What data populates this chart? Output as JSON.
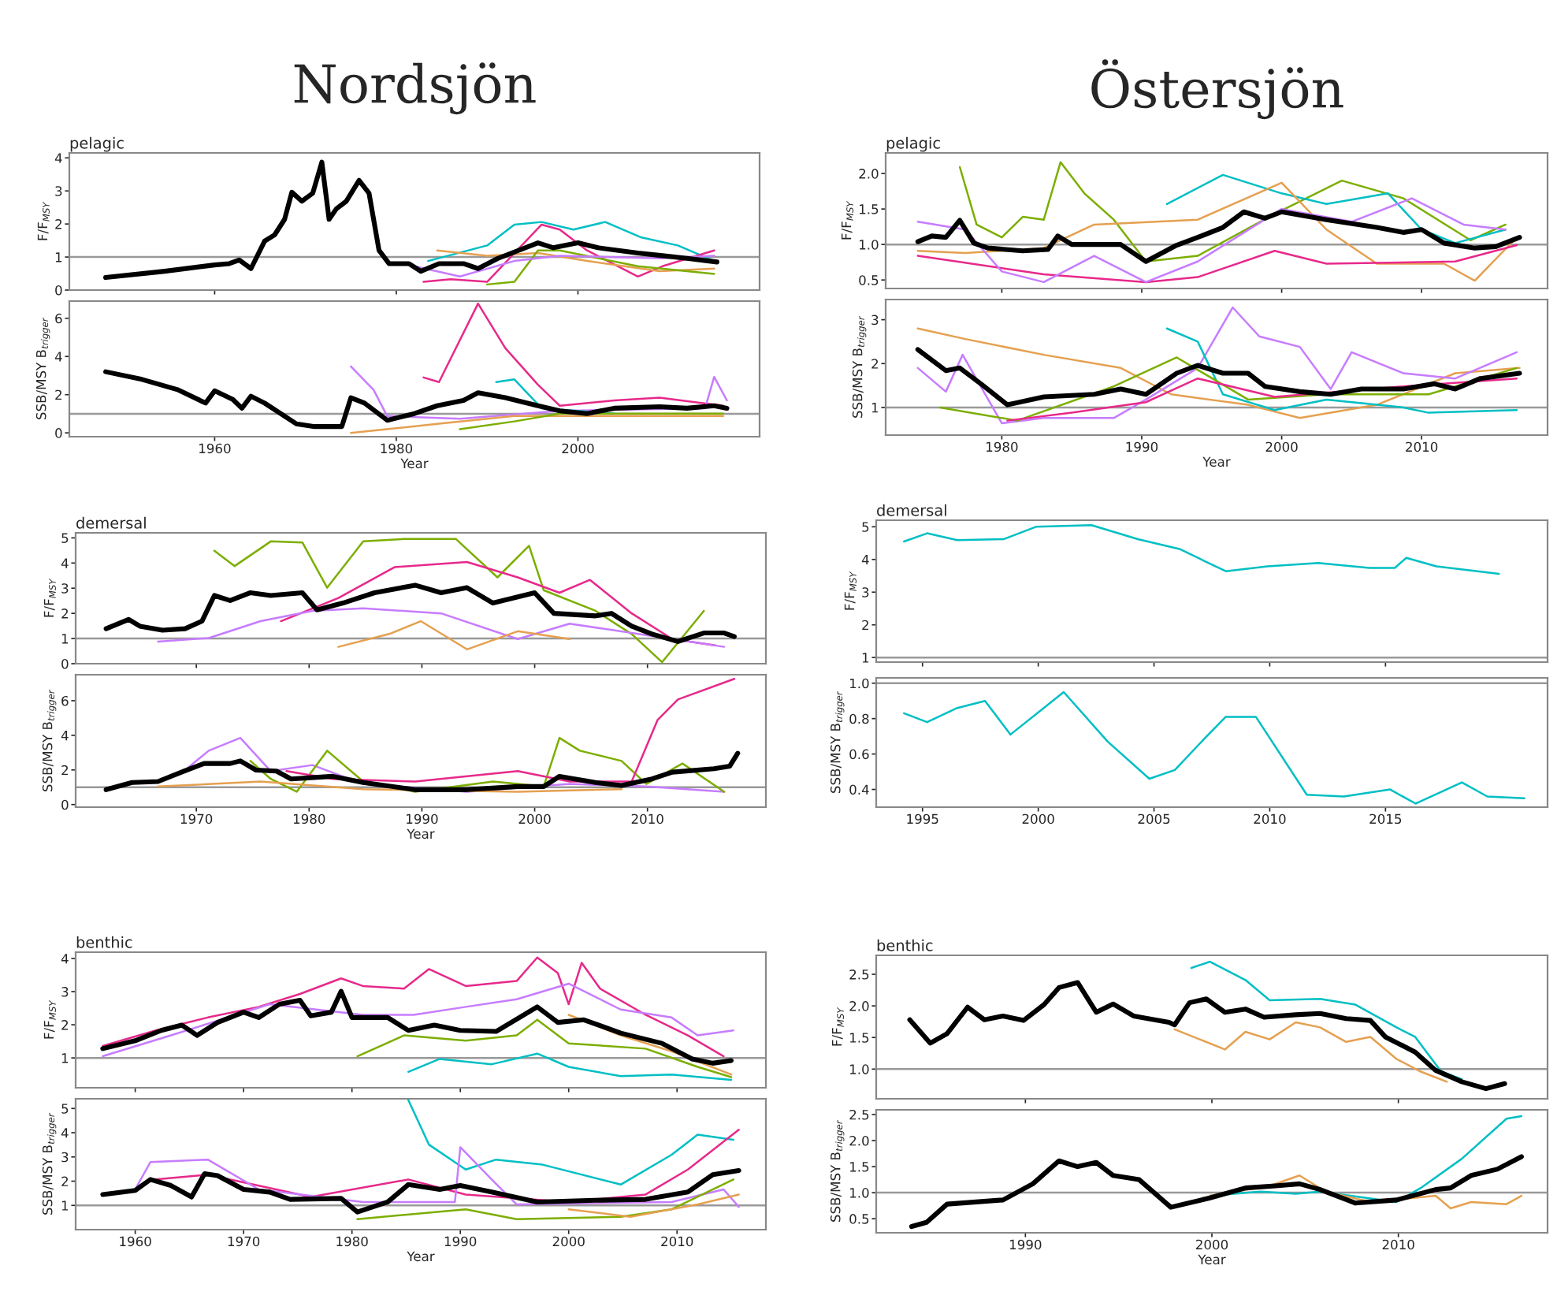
{
  "chart_data": [
    {
      "type": "line",
      "title": "pelagic",
      "ylabel": "F/F$_{MSY}$",
      "annotations": [
        "Nordsjön"
      ],
      "xlim": [
        1944,
        2020
      ],
      "xticks": [
        1960,
        1980,
        2000
      ],
      "ylim": [
        0,
        4.15
      ],
      "yticks": [
        0,
        1,
        2,
        3,
        4
      ],
      "tick_labels": "y",
      "ref_lines": [
        {
          "axis": "y",
          "value": 1,
          "color": "#999999"
        }
      ],
      "series": [
        {
          "color": "#000000",
          "x": [
            1948,
            1954.5,
            1960,
            1961.6,
            1962.7,
            1964,
            1965.5,
            1966.6,
            1967.7,
            1968.5,
            1969.6,
            1970.8,
            1971.8,
            1972.6,
            1973.4,
            1974.5,
            1975.9,
            1977,
            1978.1,
            1979.2,
            1981.4,
            1982.7,
            1984.7,
            1987.4,
            1989,
            1991.2,
            1995.6,
            1997.3,
            2000,
            2002.2,
            2006.6,
            2009.3,
            2012,
            2015.3
          ],
          "values": [
            0.38,
            0.57,
            0.76,
            0.8,
            0.91,
            0.65,
            1.48,
            1.67,
            2.14,
            2.96,
            2.69,
            2.93,
            3.87,
            2.14,
            2.46,
            2.69,
            3.32,
            2.93,
            1.2,
            0.8,
            0.8,
            0.57,
            0.8,
            0.8,
            0.65,
            0.96,
            1.43,
            1.28,
            1.43,
            1.28,
            1.12,
            1.04,
            0.96,
            0.85
          ]
        },
        {
          "color": "#00bfc4",
          "x": [
            1983.5,
            1990,
            1993,
            1996,
            1999.5,
            2003,
            2007,
            2011,
            2015
          ],
          "values": [
            0.88,
            1.35,
            1.98,
            2.06,
            1.83,
            2.06,
            1.59,
            1.35,
            0.88
          ]
        },
        {
          "color": "#e7298a",
          "x": [
            1983,
            1986,
            1990,
            1996,
            1998,
            2001,
            2006.6,
            2009.3,
            2015
          ],
          "values": [
            0.25,
            0.33,
            0.25,
            1.98,
            1.83,
            1.2,
            0.41,
            0.72,
            1.2
          ]
        },
        {
          "color": "#e5a050",
          "x": [
            1984.5,
            1990,
            1995.6,
            2001,
            2009,
            2015
          ],
          "values": [
            1.2,
            1.04,
            1.12,
            0.88,
            0.57,
            0.65
          ]
        },
        {
          "color": "#7cae00",
          "x": [
            1990,
            1993,
            1995.6,
            1998,
            2006.6,
            2015
          ],
          "values": [
            0.17,
            0.25,
            1.2,
            1.2,
            0.72,
            0.49
          ]
        },
        {
          "color": "#c77cff",
          "x": [
            1982,
            1987,
            1993,
            1998,
            2009,
            2015
          ],
          "values": [
            0.72,
            0.41,
            0.88,
            1.04,
            0.96,
            1.04
          ]
        }
      ]
    },
    {
      "type": "line",
      "ylabel": "SSB/MSY B$_{trigger}$",
      "xlabel": "Year",
      "xlim": [
        1944,
        2020
      ],
      "xticks": [
        1960,
        1980,
        2000
      ],
      "ylim": [
        -0.2,
        6.9
      ],
      "yticks": [
        0,
        2,
        4,
        6
      ],
      "ref_lines": [
        {
          "axis": "y",
          "value": 1,
          "color": "#999999"
        }
      ],
      "series": [
        {
          "color": "#000000",
          "x": [
            1948,
            1952,
            1956,
            1959,
            1960,
            1962,
            1963,
            1964,
            1965.5,
            1969,
            1971,
            1974,
            1975,
            1976.5,
            1979,
            1982,
            1984.5,
            1987.4,
            1989,
            1992,
            1995.6,
            1998,
            2001,
            2004,
            2009,
            2012,
            2015,
            2016.4
          ],
          "values": [
            3.2,
            2.8,
            2.25,
            1.56,
            2.2,
            1.75,
            1.29,
            1.92,
            1.56,
            0.47,
            0.33,
            0.33,
            1.84,
            1.56,
            0.66,
            1.01,
            1.42,
            1.7,
            2.1,
            1.84,
            1.42,
            1.15,
            1.01,
            1.29,
            1.37,
            1.29,
            1.42,
            1.29
          ]
        },
        {
          "color": "#e7298a",
          "x": [
            1983,
            1984.7,
            1989,
            1992,
            1995.6,
            1998,
            2004,
            2009,
            2016
          ],
          "values": [
            2.9,
            2.66,
            6.77,
            4.44,
            2.52,
            1.42,
            1.7,
            1.84,
            1.42
          ]
        },
        {
          "color": "#c77cff",
          "x": [
            1975,
            1977.5,
            1979,
            1987,
            1998,
            2014,
            2015,
            2016.4
          ],
          "values": [
            3.48,
            2.25,
            0.88,
            0.74,
            1.15,
            1.29,
            2.93,
            1.7
          ]
        },
        {
          "color": "#00bfc4",
          "x": [
            1991,
            1993,
            1996,
            2004
          ],
          "values": [
            2.66,
            2.8,
            1.29,
            1.01
          ]
        },
        {
          "color": "#e5a050",
          "x": [
            1975,
            1984.5,
            1993,
            2004,
            2016
          ],
          "values": [
            0.0,
            0.47,
            0.88,
            0.88,
            0.88
          ]
        },
        {
          "color": "#7cae00",
          "x": [
            1987,
            1993,
            1998,
            2016
          ],
          "values": [
            0.19,
            0.6,
            1.01,
            1.01
          ]
        }
      ]
    },
    {
      "type": "line",
      "title": "pelagic",
      "ylabel": "F/F$_{MSY}$",
      "annotations": [
        "Östersjön"
      ],
      "xlim": [
        1971.7,
        2019
      ],
      "xticks": [
        1980,
        1990,
        2000,
        2010
      ],
      "ylim": [
        0.38,
        2.29
      ],
      "yticks": [
        {
          "value": 0.5,
          "label": "0.5"
        },
        {
          "value": 1,
          "label": "1.0"
        },
        {
          "value": 1.5,
          "label": "1.5"
        },
        {
          "value": 2,
          "label": "2.0"
        }
      ],
      "tick_labels": "y",
      "ref_lines": [
        {
          "axis": "y",
          "value": 1,
          "color": "#999999"
        }
      ],
      "series": [
        {
          "color": "#000000",
          "x": [
            1974,
            1975,
            1976,
            1977,
            1978,
            1979,
            1981.5,
            1983.3,
            1984,
            1985,
            1988.5,
            1990.3,
            1992.5,
            1994,
            1995.8,
            1997.3,
            1998.8,
            2000,
            2003.2,
            2006.8,
            2008.7,
            2010,
            2011.6,
            2013.8,
            2015.3,
            2017
          ],
          "values": [
            1.04,
            1.12,
            1.1,
            1.34,
            1.02,
            0.95,
            0.91,
            0.93,
            1.12,
            1.0,
            1.0,
            0.76,
            0.99,
            1.1,
            1.24,
            1.46,
            1.37,
            1.46,
            1.35,
            1.24,
            1.17,
            1.21,
            1.02,
            0.95,
            0.97,
            1.1
          ]
        },
        {
          "color": "#7cae00",
          "x": [
            1977,
            1978.2,
            1980,
            1981.5,
            1983,
            1984.2,
            1985.9,
            1988,
            1990.3,
            1994,
            1999.5,
            2004.3,
            2008.7,
            2013.5,
            2016
          ],
          "values": [
            2.09,
            1.28,
            1.1,
            1.39,
            1.35,
            2.16,
            1.72,
            1.35,
            0.76,
            0.84,
            1.43,
            1.9,
            1.65,
            1.06,
            1.28
          ]
        },
        {
          "color": "#00bfc4",
          "x": [
            1991.8,
            1995.8,
            2000,
            2003.2,
            2007.6,
            2010,
            2012.4,
            2016
          ],
          "values": [
            1.57,
            1.98,
            1.72,
            1.57,
            1.72,
            1.21,
            1.02,
            1.21
          ]
        },
        {
          "color": "#e5a050",
          "x": [
            1974,
            1977.4,
            1983,
            1986.6,
            1994,
            2000,
            2003.2,
            2006.8,
            2011.6,
            2013.8,
            2016.8
          ],
          "values": [
            0.91,
            0.88,
            0.95,
            1.28,
            1.35,
            1.87,
            1.21,
            0.73,
            0.73,
            0.49,
            1.1
          ]
        },
        {
          "color": "#e7298a",
          "x": [
            1974,
            1983,
            1990.3,
            1994,
            1999.5,
            2003.2,
            2012.4,
            2016.8
          ],
          "values": [
            0.84,
            0.58,
            0.47,
            0.54,
            0.91,
            0.73,
            0.76,
            0.99
          ]
        },
        {
          "color": "#c77cff",
          "x": [
            1974,
            1977.4,
            1980,
            1983,
            1986.6,
            1990.3,
            1994,
            2000,
            2005,
            2009.3,
            2013,
            2016
          ],
          "values": [
            1.32,
            1.21,
            0.62,
            0.47,
            0.84,
            0.47,
            0.76,
            1.5,
            1.32,
            1.65,
            1.28,
            1.21
          ]
        }
      ]
    },
    {
      "type": "line",
      "ylabel": "SSB/MSY B$_{trigger}$",
      "xlabel": "Year",
      "xlim": [
        1971.7,
        2019
      ],
      "xticks": [
        1980,
        1990,
        2000,
        2010
      ],
      "ylim": [
        0.37,
        3.46
      ],
      "yticks": [
        1,
        2,
        3
      ],
      "ref_lines": [
        {
          "axis": "y",
          "value": 1,
          "color": "#999999"
        }
      ],
      "series": [
        {
          "color": "#000000",
          "x": [
            1974,
            1976,
            1977,
            1978.5,
            1980.4,
            1983,
            1986.6,
            1988.5,
            1990.3,
            1992.5,
            1994,
            1995.8,
            1997.6,
            1998.8,
            2001.3,
            2003.5,
            2005.7,
            2008.7,
            2010.9,
            2012.4,
            2014.2,
            2017
          ],
          "values": [
            2.32,
            1.84,
            1.9,
            1.54,
            1.06,
            1.24,
            1.3,
            1.42,
            1.3,
            1.78,
            1.96,
            1.78,
            1.78,
            1.48,
            1.36,
            1.3,
            1.42,
            1.42,
            1.54,
            1.42,
            1.66,
            1.78
          ]
        },
        {
          "color": "#e5a050",
          "x": [
            1974,
            1977.4,
            1983,
            1988.5,
            1992.1,
            1997.6,
            2001.3,
            2006.8,
            2012.4,
            2017
          ],
          "values": [
            2.8,
            2.56,
            2.2,
            1.9,
            1.3,
            1.06,
            0.76,
            1.06,
            1.78,
            1.9
          ]
        },
        {
          "color": "#c77cff",
          "x": [
            1974,
            1976,
            1977.2,
            1980,
            1983,
            1988,
            1990.3,
            1994,
            1996.5,
            1998.4,
            2001.3,
            2003.5,
            2005,
            2008.7,
            2012.4,
            2016.8
          ],
          "values": [
            1.9,
            1.36,
            2.2,
            0.64,
            0.76,
            0.76,
            1.18,
            1.9,
            3.28,
            2.62,
            2.38,
            1.42,
            2.26,
            1.78,
            1.66,
            2.26
          ]
        },
        {
          "color": "#00bfc4",
          "x": [
            1991.8,
            1994,
            1995.8,
            1999.5,
            2003.2,
            2008.7,
            2010.5,
            2016.8
          ],
          "values": [
            2.8,
            2.5,
            1.3,
            0.94,
            1.18,
            1.0,
            0.88,
            0.94
          ]
        },
        {
          "color": "#7cae00",
          "x": [
            1975.6,
            1981.1,
            1988,
            1992.5,
            1997.6,
            2003.2,
            2010.5,
            2016.8
          ],
          "values": [
            1.0,
            0.7,
            1.48,
            2.14,
            1.18,
            1.3,
            1.3,
            1.9
          ]
        },
        {
          "color": "#e7298a",
          "x": [
            1980.4,
            1985,
            1990.3,
            1994,
            1999.5,
            2008.7,
            2016.8
          ],
          "values": [
            0.7,
            0.88,
            1.12,
            1.66,
            1.24,
            1.48,
            1.66
          ]
        }
      ]
    },
    {
      "type": "line",
      "title": "demersal",
      "ylabel": "F/F$_{MSY}$",
      "xlim": [
        1959.3,
        2020.5
      ],
      "xticks": [
        1970,
        1980,
        1990,
        2000,
        2010
      ],
      "ylim": [
        0,
        5.2
      ],
      "yticks": [
        0,
        1,
        2,
        3,
        4,
        5
      ],
      "tick_labels": "y",
      "ref_lines": [
        {
          "axis": "y",
          "value": 1,
          "color": "#999999"
        }
      ],
      "series": [
        {
          "color": "#000000",
          "x": [
            1962,
            1964,
            1965,
            1967,
            1969,
            1970.5,
            1971.6,
            1973,
            1974.8,
            1976.6,
            1979.4,
            1980.7,
            1983,
            1985.8,
            1989.4,
            1991.7,
            1994,
            1996.3,
            2000,
            2001.7,
            2005.4,
            2006.8,
            2008.6,
            2010.4,
            2012.7,
            2015,
            2016.8,
            2017.7
          ],
          "values": [
            1.39,
            1.76,
            1.49,
            1.33,
            1.39,
            1.69,
            2.71,
            2.51,
            2.82,
            2.71,
            2.82,
            2.14,
            2.41,
            2.82,
            3.12,
            2.82,
            3.02,
            2.41,
            2.82,
            2.0,
            1.9,
            2.0,
            1.49,
            1.18,
            0.88,
            1.22,
            1.22,
            1.08
          ]
        },
        {
          "color": "#7cae00",
          "x": [
            1971.6,
            1973.4,
            1976.6,
            1979.4,
            1981.6,
            1984.8,
            1988.5,
            1993,
            1996.7,
            1999.5,
            2000.8,
            2005.4,
            2008.6,
            2011.3,
            2015
          ],
          "values": [
            4.49,
            3.88,
            4.86,
            4.82,
            3.02,
            4.86,
            4.96,
            4.96,
            3.43,
            4.69,
            2.92,
            2.1,
            1.18,
            0.06,
            2.1
          ]
        },
        {
          "color": "#e7298a",
          "x": [
            1977.5,
            1982.6,
            1987.6,
            1994,
            1998.5,
            2002.2,
            2004.9,
            2008.6,
            2012.2,
            2016
          ],
          "values": [
            1.69,
            2.61,
            3.84,
            4.04,
            3.43,
            2.82,
            3.33,
            2.0,
            0.98,
            0.73
          ]
        },
        {
          "color": "#c77cff",
          "x": [
            1966.6,
            1971.1,
            1975.7,
            1980.3,
            1984.8,
            1991.7,
            1998.5,
            2003.1,
            2012.2,
            2016.8
          ],
          "values": [
            0.88,
            1.02,
            1.69,
            2.1,
            2.2,
            2.0,
            0.98,
            1.59,
            0.98,
            0.67
          ]
        },
        {
          "color": "#e5a050",
          "x": [
            1982.6,
            1987.1,
            1989.9,
            1994,
            1998.5,
            2003.1
          ],
          "values": [
            0.67,
            1.18,
            1.69,
            0.57,
            1.29,
            0.98
          ]
        }
      ]
    },
    {
      "type": "line",
      "ylabel": "SSB/MSY B$_{trigger}$",
      "xlabel": "Year",
      "xlim": [
        1959.3,
        2020.5
      ],
      "xticks": [
        1970,
        1980,
        1990,
        2000,
        2010
      ],
      "ylim": [
        -0.15,
        7.5
      ],
      "yticks": [
        0,
        2,
        4,
        6
      ],
      "ref_lines": [
        {
          "axis": "y",
          "value": 1,
          "color": "#999999"
        }
      ],
      "series": [
        {
          "color": "#000000",
          "x": [
            1962,
            1964.3,
            1966.6,
            1968.9,
            1970.7,
            1973,
            1973.9,
            1975.3,
            1977.1,
            1978.4,
            1982.1,
            1984.8,
            1989.4,
            1994,
            1998.5,
            2000.8,
            2002.2,
            2005.4,
            2007.7,
            2010.4,
            2012.2,
            2015.9,
            2017.3,
            2018
          ],
          "values": [
            0.86,
            1.27,
            1.33,
            1.93,
            2.37,
            2.37,
            2.52,
            1.99,
            1.93,
            1.48,
            1.63,
            1.27,
            0.86,
            0.86,
            1.04,
            1.04,
            1.63,
            1.27,
            1.1,
            1.48,
            1.87,
            2.07,
            2.22,
            2.96
          ]
        },
        {
          "color": "#c77cff",
          "x": [
            1968.9,
            1971.1,
            1973.9,
            1976.6,
            1980.3,
            1984.8,
            1994,
            2003.1,
            2009.9,
            2016.8
          ],
          "values": [
            1.93,
            3.11,
            3.85,
            1.93,
            2.28,
            1.19,
            0.74,
            1.19,
            1.04,
            0.74
          ]
        },
        {
          "color": "#7cae00",
          "x": [
            1974.8,
            1976.6,
            1978.9,
            1981.6,
            1984.8,
            1989.4,
            1996.3,
            2000.8,
            2002.2,
            2004,
            2007.7,
            2009.9,
            2013.1,
            2016.8
          ],
          "values": [
            2.52,
            1.48,
            0.74,
            3.11,
            1.33,
            0.74,
            1.33,
            1.04,
            3.85,
            3.11,
            2.52,
            1.19,
            2.37,
            0.74
          ]
        },
        {
          "color": "#e7298a",
          "x": [
            1978,
            1982.1,
            1989.4,
            1998.5,
            2003.1,
            2008.6,
            2010.9,
            2012.7,
            2017.7
          ],
          "values": [
            1.93,
            1.48,
            1.33,
            1.93,
            1.33,
            1.33,
            4.89,
            6.07,
            7.26
          ]
        },
        {
          "color": "#e5a050",
          "x": [
            1966.6,
            1975.7,
            1984.8,
            1998.5,
            2007.7
          ],
          "values": [
            1.04,
            1.33,
            0.89,
            0.74,
            0.89
          ]
        }
      ]
    },
    {
      "type": "line",
      "title": "demersal",
      "ylabel": "F/F$_{MSY}$",
      "xlim": [
        1993,
        2022
      ],
      "xticks": [
        1995,
        2000,
        2005,
        2010,
        2015
      ],
      "ylim": [
        0.86,
        5.2
      ],
      "yticks": [
        1,
        2,
        3,
        4,
        5
      ],
      "tick_labels": "y",
      "ref_lines": [
        {
          "axis": "y",
          "value": 1,
          "color": "#999999"
        }
      ],
      "series": [
        {
          "color": "#00bfc4",
          "x": [
            1994.2,
            1995.2,
            1996.5,
            1998.5,
            1999.9,
            2002.3,
            2004.3,
            2006.1,
            2008.1,
            2009.9,
            2012.1,
            2014.3,
            2015.4,
            2015.9,
            2017.2,
            2019.9
          ],
          "values": [
            4.55,
            4.8,
            4.59,
            4.62,
            5.0,
            5.05,
            4.62,
            4.32,
            3.64,
            3.79,
            3.89,
            3.74,
            3.74,
            4.05,
            3.79,
            3.56
          ]
        }
      ]
    },
    {
      "type": "line",
      "ylabel": "SSB/MSY B$_{trigger}$",
      "xlim": [
        1993,
        2022
      ],
      "xticks": [
        1995,
        2000,
        2005,
        2010,
        2015
      ],
      "ylim": [
        0.3,
        1.03
      ],
      "yticks": [
        {
          "value": 0.4,
          "label": "0.4"
        },
        {
          "value": 0.6,
          "label": "0.6"
        },
        {
          "value": 0.8,
          "label": "0.8"
        },
        {
          "value": 1,
          "label": "1.0"
        }
      ],
      "ref_lines": [
        {
          "axis": "y",
          "value": 1,
          "color": "#999999"
        }
      ],
      "series": [
        {
          "color": "#00bfc4",
          "x": [
            1994.2,
            1995.2,
            1996.5,
            1997.7,
            1998.8,
            2001.1,
            2003,
            2004.8,
            2005.9,
            2007.2,
            2008.1,
            2009.4,
            2011.6,
            2013.2,
            2015.2,
            2016.3,
            2018.3,
            2019.4,
            2021
          ],
          "values": [
            0.83,
            0.78,
            0.86,
            0.9,
            0.71,
            0.95,
            0.67,
            0.46,
            0.51,
            0.69,
            0.81,
            0.81,
            0.37,
            0.36,
            0.4,
            0.32,
            0.44,
            0.36,
            0.35
          ]
        }
      ]
    },
    {
      "type": "line",
      "title": "benthic",
      "ylabel": "F/F$_{MSY}$",
      "xlim": [
        1954.5,
        2018.2
      ],
      "xticks": [
        1960,
        1970,
        1980,
        1990,
        2000,
        2010
      ],
      "ylim": [
        0.1,
        4.19
      ],
      "yticks": [
        1,
        2,
        3,
        4
      ],
      "tick_labels": "y",
      "ref_lines": [
        {
          "axis": "y",
          "value": 1,
          "color": "#999999"
        }
      ],
      "series": [
        {
          "color": "#000000",
          "x": [
            1957,
            1960,
            1962.4,
            1964.3,
            1965.7,
            1967.6,
            1970,
            1971.4,
            1973.3,
            1975.2,
            1976.2,
            1978.1,
            1979,
            1980,
            1983.3,
            1985.2,
            1987.6,
            1990,
            1993.3,
            1997.1,
            1999,
            2001.4,
            2004.8,
            2008.6,
            2011.4,
            2013.3,
            2015
          ],
          "values": [
            1.28,
            1.52,
            1.83,
            1.99,
            1.68,
            2.07,
            2.38,
            2.22,
            2.62,
            2.74,
            2.27,
            2.38,
            3.01,
            2.22,
            2.22,
            1.83,
            1.99,
            1.83,
            1.8,
            2.54,
            2.07,
            2.15,
            1.75,
            1.44,
            0.97,
            0.84,
            0.92
          ]
        },
        {
          "color": "#e7298a",
          "x": [
            1957,
            1961.9,
            1966.7,
            1971.4,
            1975.2,
            1979,
            1981,
            1984.8,
            1987.1,
            1990.5,
            1995.2,
            1997.1,
            1999,
            2000,
            2001.2,
            2002.9,
            2007.1,
            2011,
            2014.3
          ],
          "values": [
            1.36,
            1.83,
            2.22,
            2.54,
            2.93,
            3.4,
            3.17,
            3.09,
            3.68,
            3.17,
            3.32,
            4.03,
            3.56,
            2.62,
            3.87,
            3.09,
            2.3,
            1.68,
            1.05
          ]
        },
        {
          "color": "#c77cff",
          "x": [
            1957,
            1963.3,
            1972.4,
            1981,
            1985.7,
            1990.5,
            1995.2,
            2000,
            2004.8,
            2009.5,
            2011.9,
            2015.2
          ],
          "values": [
            1.05,
            1.68,
            2.62,
            2.3,
            2.3,
            2.54,
            2.77,
            3.24,
            2.46,
            2.22,
            1.68,
            1.83
          ]
        },
        {
          "color": "#7cae00",
          "x": [
            1980.5,
            1984.8,
            1990.5,
            1995.2,
            1997.1,
            2000,
            2007.1,
            2011.9,
            2015
          ],
          "values": [
            1.05,
            1.68,
            1.52,
            1.68,
            2.15,
            1.44,
            1.28,
            0.73,
            0.42
          ]
        },
        {
          "color": "#00bfc4",
          "x": [
            1985.2,
            1988.1,
            1992.9,
            1997.1,
            2000,
            2004.8,
            2009.5,
            2015
          ],
          "values": [
            0.58,
            0.97,
            0.81,
            1.13,
            0.73,
            0.45,
            0.5,
            0.34
          ]
        },
        {
          "color": "#e5a050",
          "x": [
            2000,
            2004.8,
            2009.5,
            2015
          ],
          "values": [
            2.3,
            1.68,
            1.2,
            0.5
          ]
        }
      ]
    },
    {
      "type": "line",
      "ylabel": "SSB/MSY B$_{trigger}$",
      "xlabel": "Year",
      "xlim": [
        1954.5,
        2018.2
      ],
      "xticks": [
        1960,
        1970,
        1980,
        1990,
        2000,
        2010
      ],
      "ylim": [
        0,
        5.4
      ],
      "yticks": [
        1,
        2,
        3,
        4,
        5
      ],
      "ref_lines": [
        {
          "axis": "y",
          "value": 1,
          "color": "#999999"
        }
      ],
      "series": [
        {
          "color": "#000000",
          "x": [
            1957,
            1960,
            1961.4,
            1963.3,
            1965.2,
            1966.4,
            1967.6,
            1970,
            1972.4,
            1974.3,
            1979,
            1980.5,
            1983.3,
            1985.2,
            1988.1,
            1990,
            1992.9,
            1997.1,
            2002.4,
            2007.1,
            2011,
            2013.3,
            2015.7
          ],
          "values": [
            1.45,
            1.62,
            2.07,
            1.82,
            1.35,
            2.31,
            2.23,
            1.66,
            1.55,
            1.25,
            1.29,
            0.73,
            1.14,
            1.86,
            1.66,
            1.82,
            1.55,
            1.14,
            1.21,
            1.25,
            1.55,
            2.27,
            2.44
          ]
        },
        {
          "color": "#00bfc4",
          "x": [
            1985.2,
            1987.1,
            1990.5,
            1993.3,
            1997.6,
            2004.8,
            2009.5,
            2011.9,
            2015.2
          ],
          "values": [
            5.35,
            3.51,
            2.48,
            2.89,
            2.68,
            1.86,
            3.09,
            3.92,
            3.71
          ]
        },
        {
          "color": "#e7298a",
          "x": [
            1961.9,
            1966.7,
            1976.2,
            1985.2,
            1990.5,
            2000,
            2007.1,
            2011,
            2015.7
          ],
          "values": [
            2.07,
            2.27,
            1.35,
            2.07,
            1.45,
            1.14,
            1.45,
            2.48,
            4.12
          ]
        },
        {
          "color": "#c77cff",
          "x": [
            1960,
            1961.4,
            1966.7,
            1971.4,
            1981,
            1989.5,
            1990,
            1992.9,
            1995.2,
            2009.5,
            2014.3,
            2015.7
          ],
          "values": [
            1.66,
            2.79,
            2.89,
            1.66,
            1.14,
            1.14,
            3.4,
            2.07,
            1.04,
            1.14,
            1.66,
            0.94
          ]
        },
        {
          "color": "#7cae00",
          "x": [
            1980.5,
            1990.5,
            1995.2,
            2004.8,
            2009.5,
            2015.2
          ],
          "values": [
            0.43,
            0.84,
            0.43,
            0.53,
            0.84,
            2.07
          ]
        },
        {
          "color": "#e5a050",
          "x": [
            2000,
            2005.7,
            2011.9,
            2015.7
          ],
          "values": [
            0.84,
            0.53,
            1.04,
            1.45
          ]
        }
      ]
    },
    {
      "type": "line",
      "title": "benthic",
      "ylabel": "F/F$_{MSY}$",
      "xlim": [
        1982,
        2018
      ],
      "xticks": [
        1990,
        2000,
        2010
      ],
      "ylim": [
        0.53,
        2.8
      ],
      "yticks": [
        {
          "value": 1,
          "label": "1.0"
        },
        {
          "value": 1.5,
          "label": "1.5"
        },
        {
          "value": 2,
          "label": "2.0"
        },
        {
          "value": 2.5,
          "label": "2.5"
        }
      ],
      "tick_labels": "y",
      "ref_lines": [
        {
          "axis": "y",
          "value": 1,
          "color": "#999999"
        }
      ],
      "series": [
        {
          "color": "#000000",
          "x": [
            1983.8,
            1984.9,
            1985.8,
            1986.9,
            1987.8,
            1988.8,
            1989.9,
            1991,
            1991.8,
            1992.8,
            1993.8,
            1994.7,
            1995.8,
            1997.7,
            1998,
            1998.8,
            1999.7,
            2000.7,
            2001.8,
            2002.8,
            2004.5,
            2005.8,
            2007.2,
            2008.5,
            2009.3,
            2010.9,
            2012,
            2013.4,
            2014.7,
            2015.7
          ],
          "values": [
            1.78,
            1.41,
            1.56,
            1.98,
            1.78,
            1.84,
            1.77,
            2.02,
            2.29,
            2.37,
            1.9,
            2.03,
            1.84,
            1.74,
            1.7,
            2.05,
            2.11,
            1.9,
            1.95,
            1.82,
            1.86,
            1.88,
            1.8,
            1.77,
            1.51,
            1.27,
            0.98,
            0.8,
            0.69,
            0.77
          ]
        },
        {
          "color": "#00bfc4",
          "x": [
            1998.9,
            1999.9,
            2001.8,
            2003.1,
            2005.8,
            2007.7,
            2009.9,
            2010.9,
            2012.3,
            2013.4
          ],
          "values": [
            2.6,
            2.7,
            2.41,
            2.09,
            2.11,
            2.02,
            1.66,
            1.51,
            0.96,
            0.84
          ]
        },
        {
          "color": "#e5a050",
          "x": [
            1998,
            2000.7,
            2001.8,
            2003.1,
            2004.5,
            2005.8,
            2007.2,
            2008.5,
            2009.9,
            2011.2,
            2012.6
          ],
          "values": [
            1.63,
            1.31,
            1.59,
            1.47,
            1.74,
            1.66,
            1.43,
            1.51,
            1.16,
            0.96,
            0.8
          ]
        }
      ]
    },
    {
      "type": "line",
      "ylabel": "SSB/MSY B$_{trigger}$",
      "xlabel": "Year",
      "xlim": [
        1982,
        2018
      ],
      "xticks": [
        1990,
        2000,
        2010
      ],
      "ylim": [
        0.23,
        2.59
      ],
      "yticks": [
        {
          "value": 0.5,
          "label": "0.5"
        },
        {
          "value": 1,
          "label": "1.0"
        },
        {
          "value": 1.5,
          "label": "1.5"
        },
        {
          "value": 2,
          "label": "2.0"
        },
        {
          "value": 2.5,
          "label": "2.5"
        }
      ],
      "ref_lines": [
        {
          "axis": "y",
          "value": 1,
          "color": "#999999"
        }
      ],
      "series": [
        {
          "color": "#000000",
          "x": [
            1983.9,
            1984.7,
            1985.8,
            1988.8,
            1990.4,
            1991.8,
            1992.8,
            1993.8,
            1994.7,
            1996.1,
            1997.8,
            1999.9,
            2001.8,
            2003.4,
            2004.7,
            2005.8,
            2007.7,
            2009.9,
            2012,
            2012.8,
            2013.9,
            2015.3,
            2016.6
          ],
          "values": [
            0.35,
            0.43,
            0.78,
            0.86,
            1.17,
            1.61,
            1.5,
            1.58,
            1.33,
            1.25,
            0.72,
            0.9,
            1.09,
            1.13,
            1.17,
            1.06,
            0.8,
            0.86,
            1.06,
            1.09,
            1.33,
            1.45,
            1.69
          ]
        },
        {
          "color": "#00bfc4",
          "x": [
            1999.9,
            2002.6,
            2004.5,
            2005.8,
            2009.9,
            2011.2,
            2013.4,
            2015.8,
            2016.6
          ],
          "values": [
            0.94,
            1.02,
            0.98,
            1.02,
            0.82,
            1.09,
            1.65,
            2.42,
            2.47
          ]
        },
        {
          "color": "#e5a050",
          "x": [
            1999.9,
            2003.1,
            2004.7,
            2006.1,
            2008.5,
            2012,
            2012.8,
            2013.9,
            2015.8,
            2016.6
          ],
          "values": [
            0.94,
            1.13,
            1.33,
            1.02,
            0.82,
            0.94,
            0.7,
            0.82,
            0.78,
            0.94
          ]
        }
      ]
    }
  ]
}
